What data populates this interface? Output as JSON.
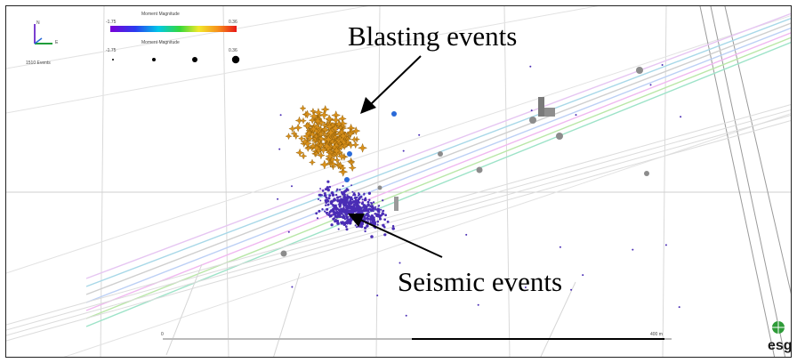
{
  "annotations": {
    "blasting": "Blasting events",
    "seismic": "Seismic events"
  },
  "legend": {
    "color_title": "Moment Magnitude",
    "color_min": "-1.75",
    "color_max": "0.36",
    "size_title": "Moment Magnitude",
    "size_min": "-1.75",
    "size_max": "0.36",
    "events_count": "1510 Events"
  },
  "axes_gizmo": {
    "up": "N",
    "right": "E"
  },
  "scale_bar": {
    "label": "400 m",
    "start_label": "0"
  },
  "logo": {
    "text": "esg"
  },
  "colors": {
    "blast_marker": "#d9901a",
    "blast_marker_edge": "#8a5a08",
    "seismic_marker": "#4a2db5",
    "sensor": "#8c8c8c",
    "gradient": [
      "#7a00d8",
      "#2a3cf0",
      "#00c8e8",
      "#35d83a",
      "#f2e82a",
      "#f7921c",
      "#e81818"
    ]
  }
}
